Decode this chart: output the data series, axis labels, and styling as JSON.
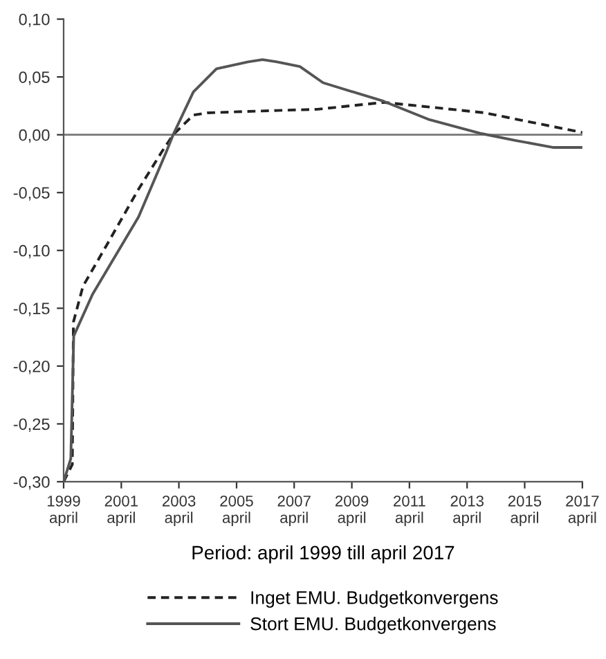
{
  "chart_data": {
    "type": "line",
    "xlabel": "Period: april 1999 till april 2017",
    "xlim": [
      "1999-04",
      "2017-04"
    ],
    "ylim": [
      -0.3,
      0.1
    ],
    "xticks": [
      {
        "value": "1999-04",
        "label": "1999\napril"
      },
      {
        "value": "2001-04",
        "label": "2001\napril"
      },
      {
        "value": "2003-04",
        "label": "2003\napril"
      },
      {
        "value": "2005-04",
        "label": "2005\napril"
      },
      {
        "value": "2007-04",
        "label": "2007\napril"
      },
      {
        "value": "2009-04",
        "label": "2009\napril"
      },
      {
        "value": "2011-04",
        "label": "2011\napril"
      },
      {
        "value": "2013-04",
        "label": "2013\napril"
      },
      {
        "value": "2015-04",
        "label": "2015\napril"
      },
      {
        "value": "2017-04",
        "label": "2017\napril"
      }
    ],
    "yticks": [
      {
        "value": -0.3,
        "label": "-0,30"
      },
      {
        "value": -0.25,
        "label": "-0,25"
      },
      {
        "value": -0.2,
        "label": "-0,20"
      },
      {
        "value": -0.15,
        "label": "-0,15"
      },
      {
        "value": -0.1,
        "label": "-0,10"
      },
      {
        "value": -0.05,
        "label": "-0,05"
      },
      {
        "value": 0.0,
        "label": "0,00"
      },
      {
        "value": 0.05,
        "label": "0,05"
      },
      {
        "value": 0.1,
        "label": "0,10"
      }
    ],
    "ref_lines": [
      {
        "axis": "y",
        "value": 0,
        "color": "#777777"
      }
    ],
    "grid": false,
    "legend": "bottom",
    "marker": "none",
    "series": [
      {
        "name": "Inget EMU. Budgetkonvergens",
        "color": "#222222",
        "line_style": "dashed",
        "x": [
          "1999-04-01",
          "1999-07-20",
          "1999-08-03",
          "1999-12-02",
          "2000-10-01",
          "2001-11-06",
          "2002-08-25",
          "2003-01-18",
          "2003-10-01",
          "2004-04-01",
          "2006-08-25",
          "2008-01-18",
          "2010-05-07",
          "2011-12-12",
          "2013-11-06",
          "2015-06-13",
          "2017-01-18",
          "2017-04-01"
        ],
        "values": [
          -0.3,
          -0.285,
          -0.162,
          -0.131,
          -0.095,
          -0.047,
          -0.015,
          0.0,
          0.017,
          0.019,
          0.021,
          0.022,
          0.028,
          0.024,
          0.019,
          0.011,
          0.003,
          0.002
        ]
      },
      {
        "name": "Stort EMU. Budgetkonvergens",
        "color": "#555555",
        "line_style": "solid",
        "x": [
          "1999-04-01",
          "1999-07-01",
          "1999-08-07",
          "2000-04-01",
          "2001-11-06",
          "2002-10-22",
          "2003-01-18",
          "2003-10-01",
          "2004-07-20",
          "2005-08-25",
          "2006-02-24",
          "2006-08-25",
          "2007-06-13",
          "2008-04-01",
          "2010-05-07",
          "2011-12-12",
          "2013-10-01",
          "2014-12-13",
          "2016-04-01",
          "2017-04-01"
        ],
        "values": [
          -0.3,
          -0.28,
          -0.174,
          -0.138,
          -0.071,
          -0.015,
          0.0,
          0.037,
          0.057,
          0.063,
          0.065,
          0.063,
          0.059,
          0.045,
          0.029,
          0.013,
          0.001,
          -0.005,
          -0.011,
          -0.011
        ]
      }
    ]
  }
}
